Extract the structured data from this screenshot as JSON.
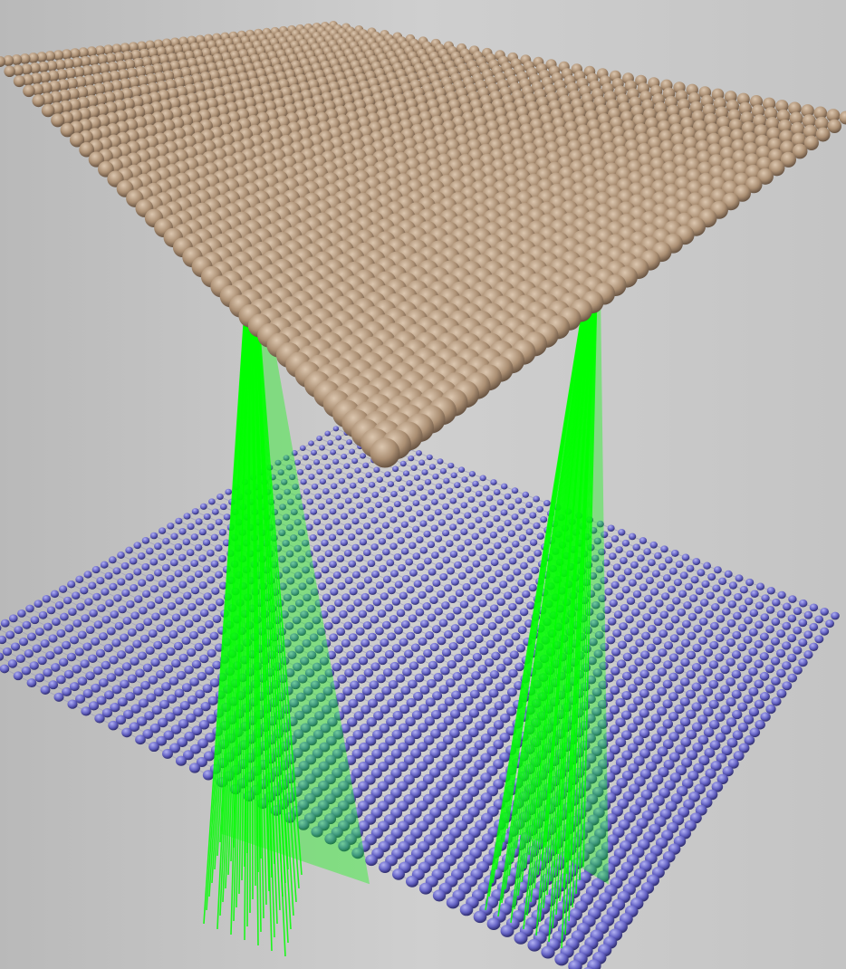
{
  "scene": {
    "background_color": "#c9c9c9",
    "upper_sheet": {
      "atom_color": "#b09478",
      "shade_color": "#6b5644",
      "highlight_color": "#d8c4ae",
      "grid_size": 40
    },
    "lower_sheet": {
      "atom_color": "#6a68c8",
      "shade_color": "#2e2c78",
      "highlight_color": "#a6a6ee",
      "bond_color": "#9a9ab8",
      "grid_size": 46
    },
    "bond_bundles": [
      {
        "name": "left",
        "color": "#00ff00",
        "line_count": 48
      },
      {
        "name": "right",
        "color": "#00ff00",
        "line_count": 48
      }
    ]
  }
}
